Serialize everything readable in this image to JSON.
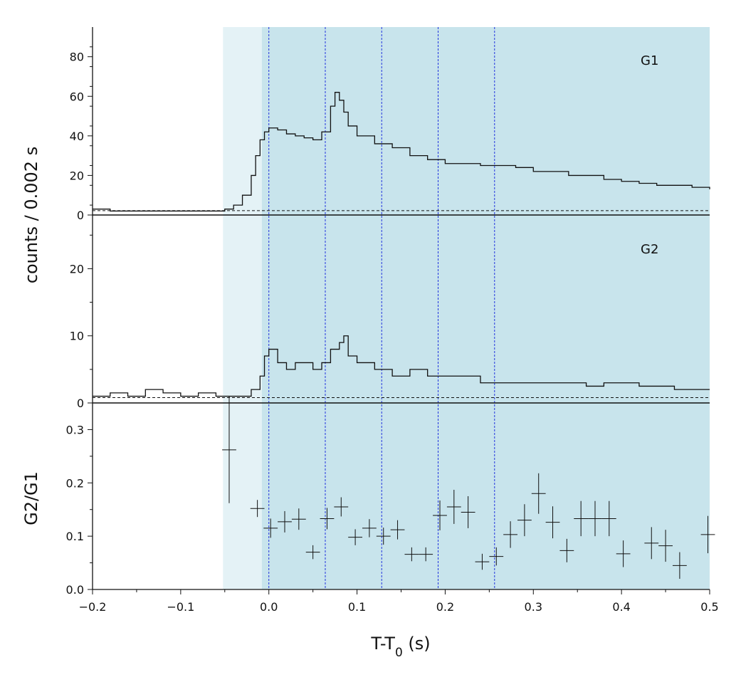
{
  "chart_data": [
    {
      "type": "line",
      "panel": "G1",
      "label": "G1",
      "drawstyle": "steps",
      "xlim": [
        -0.2,
        0.5
      ],
      "ylim": [
        0,
        95
      ],
      "yticks": [
        0,
        20,
        40,
        60,
        80
      ],
      "background_level": 2.2,
      "x": [
        -0.2,
        -0.18,
        -0.16,
        -0.14,
        -0.12,
        -0.1,
        -0.08,
        -0.06,
        -0.05,
        -0.04,
        -0.03,
        -0.02,
        -0.015,
        -0.01,
        -0.005,
        0.0,
        0.01,
        0.02,
        0.03,
        0.04,
        0.05,
        0.06,
        0.07,
        0.075,
        0.08,
        0.085,
        0.09,
        0.1,
        0.12,
        0.14,
        0.16,
        0.18,
        0.2,
        0.22,
        0.24,
        0.26,
        0.28,
        0.3,
        0.32,
        0.34,
        0.36,
        0.38,
        0.4,
        0.42,
        0.44,
        0.46,
        0.48,
        0.5
      ],
      "y": [
        3,
        2,
        2,
        2,
        2,
        2,
        2,
        2,
        3,
        5,
        10,
        20,
        30,
        38,
        42,
        44,
        43,
        41,
        40,
        39,
        38,
        42,
        55,
        62,
        58,
        52,
        45,
        40,
        36,
        34,
        30,
        28,
        26,
        26,
        25,
        25,
        24,
        22,
        22,
        20,
        20,
        18,
        17,
        16,
        15,
        15,
        14,
        13
      ]
    },
    {
      "type": "line",
      "panel": "G2",
      "label": "G2",
      "drawstyle": "steps",
      "xlim": [
        -0.2,
        0.5
      ],
      "ylim": [
        0,
        28
      ],
      "yticks": [
        0,
        10,
        20
      ],
      "background_level": 0.8,
      "x": [
        -0.2,
        -0.18,
        -0.16,
        -0.14,
        -0.12,
        -0.1,
        -0.08,
        -0.06,
        -0.04,
        -0.02,
        -0.01,
        -0.005,
        0.0,
        0.01,
        0.02,
        0.03,
        0.04,
        0.05,
        0.06,
        0.07,
        0.08,
        0.085,
        0.09,
        0.1,
        0.12,
        0.14,
        0.16,
        0.18,
        0.2,
        0.22,
        0.24,
        0.26,
        0.28,
        0.3,
        0.32,
        0.34,
        0.36,
        0.38,
        0.4,
        0.42,
        0.44,
        0.46,
        0.48,
        0.5
      ],
      "y": [
        1,
        1.5,
        1,
        2,
        1.5,
        1,
        1.5,
        1,
        1,
        2,
        4,
        7,
        8,
        6,
        5,
        6,
        6,
        5,
        6,
        8,
        9,
        10,
        7,
        6,
        5,
        4,
        5,
        4,
        4,
        4,
        3,
        3,
        3,
        3,
        3,
        3,
        2.5,
        3,
        3,
        2.5,
        2.5,
        2,
        2,
        2
      ]
    },
    {
      "type": "scatter",
      "panel": "ratio",
      "ylabel": "G2/G1",
      "xlabel": "T-T0 (s)",
      "xlim": [
        -0.2,
        0.5
      ],
      "ylim": [
        0,
        0.35
      ],
      "xticks": [
        -0.2,
        -0.1,
        0.0,
        0.1,
        0.2,
        0.3,
        0.4,
        0.5
      ],
      "xtick_labels": [
        "−0.2",
        "−0.1",
        "0.0",
        "0.1",
        "0.2",
        "0.3",
        "0.4",
        "0.5"
      ],
      "yticks": [
        0.0,
        0.1,
        0.2,
        0.3
      ],
      "ytick_labels": [
        "0.0",
        "0.1",
        "0.2",
        "0.3"
      ],
      "x_bin_width": 0.016,
      "points": [
        {
          "x": -0.045,
          "y": 0.262,
          "yerr": 0.1
        },
        {
          "x": -0.013,
          "y": 0.152,
          "yerr": 0.016
        },
        {
          "x": 0.002,
          "y": 0.115,
          "yerr": 0.018
        },
        {
          "x": 0.018,
          "y": 0.127,
          "yerr": 0.02
        },
        {
          "x": 0.034,
          "y": 0.132,
          "yerr": 0.02
        },
        {
          "x": 0.05,
          "y": 0.07,
          "yerr": 0.013
        },
        {
          "x": 0.066,
          "y": 0.133,
          "yerr": 0.02
        },
        {
          "x": 0.082,
          "y": 0.155,
          "yerr": 0.018
        },
        {
          "x": 0.098,
          "y": 0.098,
          "yerr": 0.015
        },
        {
          "x": 0.114,
          "y": 0.115,
          "yerr": 0.017
        },
        {
          "x": 0.13,
          "y": 0.1,
          "yerr": 0.016
        },
        {
          "x": 0.146,
          "y": 0.112,
          "yerr": 0.018
        },
        {
          "x": 0.162,
          "y": 0.066,
          "yerr": 0.013
        },
        {
          "x": 0.178,
          "y": 0.066,
          "yerr": 0.013
        },
        {
          "x": 0.194,
          "y": 0.139,
          "yerr": 0.028
        },
        {
          "x": 0.21,
          "y": 0.155,
          "yerr": 0.032
        },
        {
          "x": 0.226,
          "y": 0.145,
          "yerr": 0.03
        },
        {
          "x": 0.242,
          "y": 0.052,
          "yerr": 0.015
        },
        {
          "x": 0.258,
          "y": 0.062,
          "yerr": 0.017
        },
        {
          "x": 0.274,
          "y": 0.103,
          "yerr": 0.025
        },
        {
          "x": 0.29,
          "y": 0.13,
          "yerr": 0.03
        },
        {
          "x": 0.306,
          "y": 0.18,
          "yerr": 0.038
        },
        {
          "x": 0.322,
          "y": 0.126,
          "yerr": 0.03
        },
        {
          "x": 0.338,
          "y": 0.073,
          "yerr": 0.022
        },
        {
          "x": 0.354,
          "y": 0.133,
          "yerr": 0.033
        },
        {
          "x": 0.37,
          "y": 0.133,
          "yerr": 0.033
        },
        {
          "x": 0.386,
          "y": 0.133,
          "yerr": 0.033
        },
        {
          "x": 0.402,
          "y": 0.067,
          "yerr": 0.025
        },
        {
          "x": 0.434,
          "y": 0.087,
          "yerr": 0.03
        },
        {
          "x": 0.45,
          "y": 0.082,
          "yerr": 0.03
        },
        {
          "x": 0.466,
          "y": 0.045,
          "yerr": 0.025
        },
        {
          "x": 0.498,
          "y": 0.103,
          "yerr": 0.035
        }
      ]
    }
  ],
  "figure": {
    "ylabel_shared": "counts /  0.002 s",
    "xlabel": {
      "main": "T-T",
      "sub": "0",
      "unit": " (s)"
    },
    "region_light": [
      -0.052,
      -0.008
    ],
    "region_dark": [
      -0.008,
      0.5
    ],
    "vlines": [
      0.0,
      0.064,
      0.128,
      0.192,
      0.256
    ],
    "colors": {
      "region_light": "#e4f2f6",
      "region_dark": "#c8e4ec",
      "vlines": "#2233dd",
      "trace": "#111111"
    }
  }
}
